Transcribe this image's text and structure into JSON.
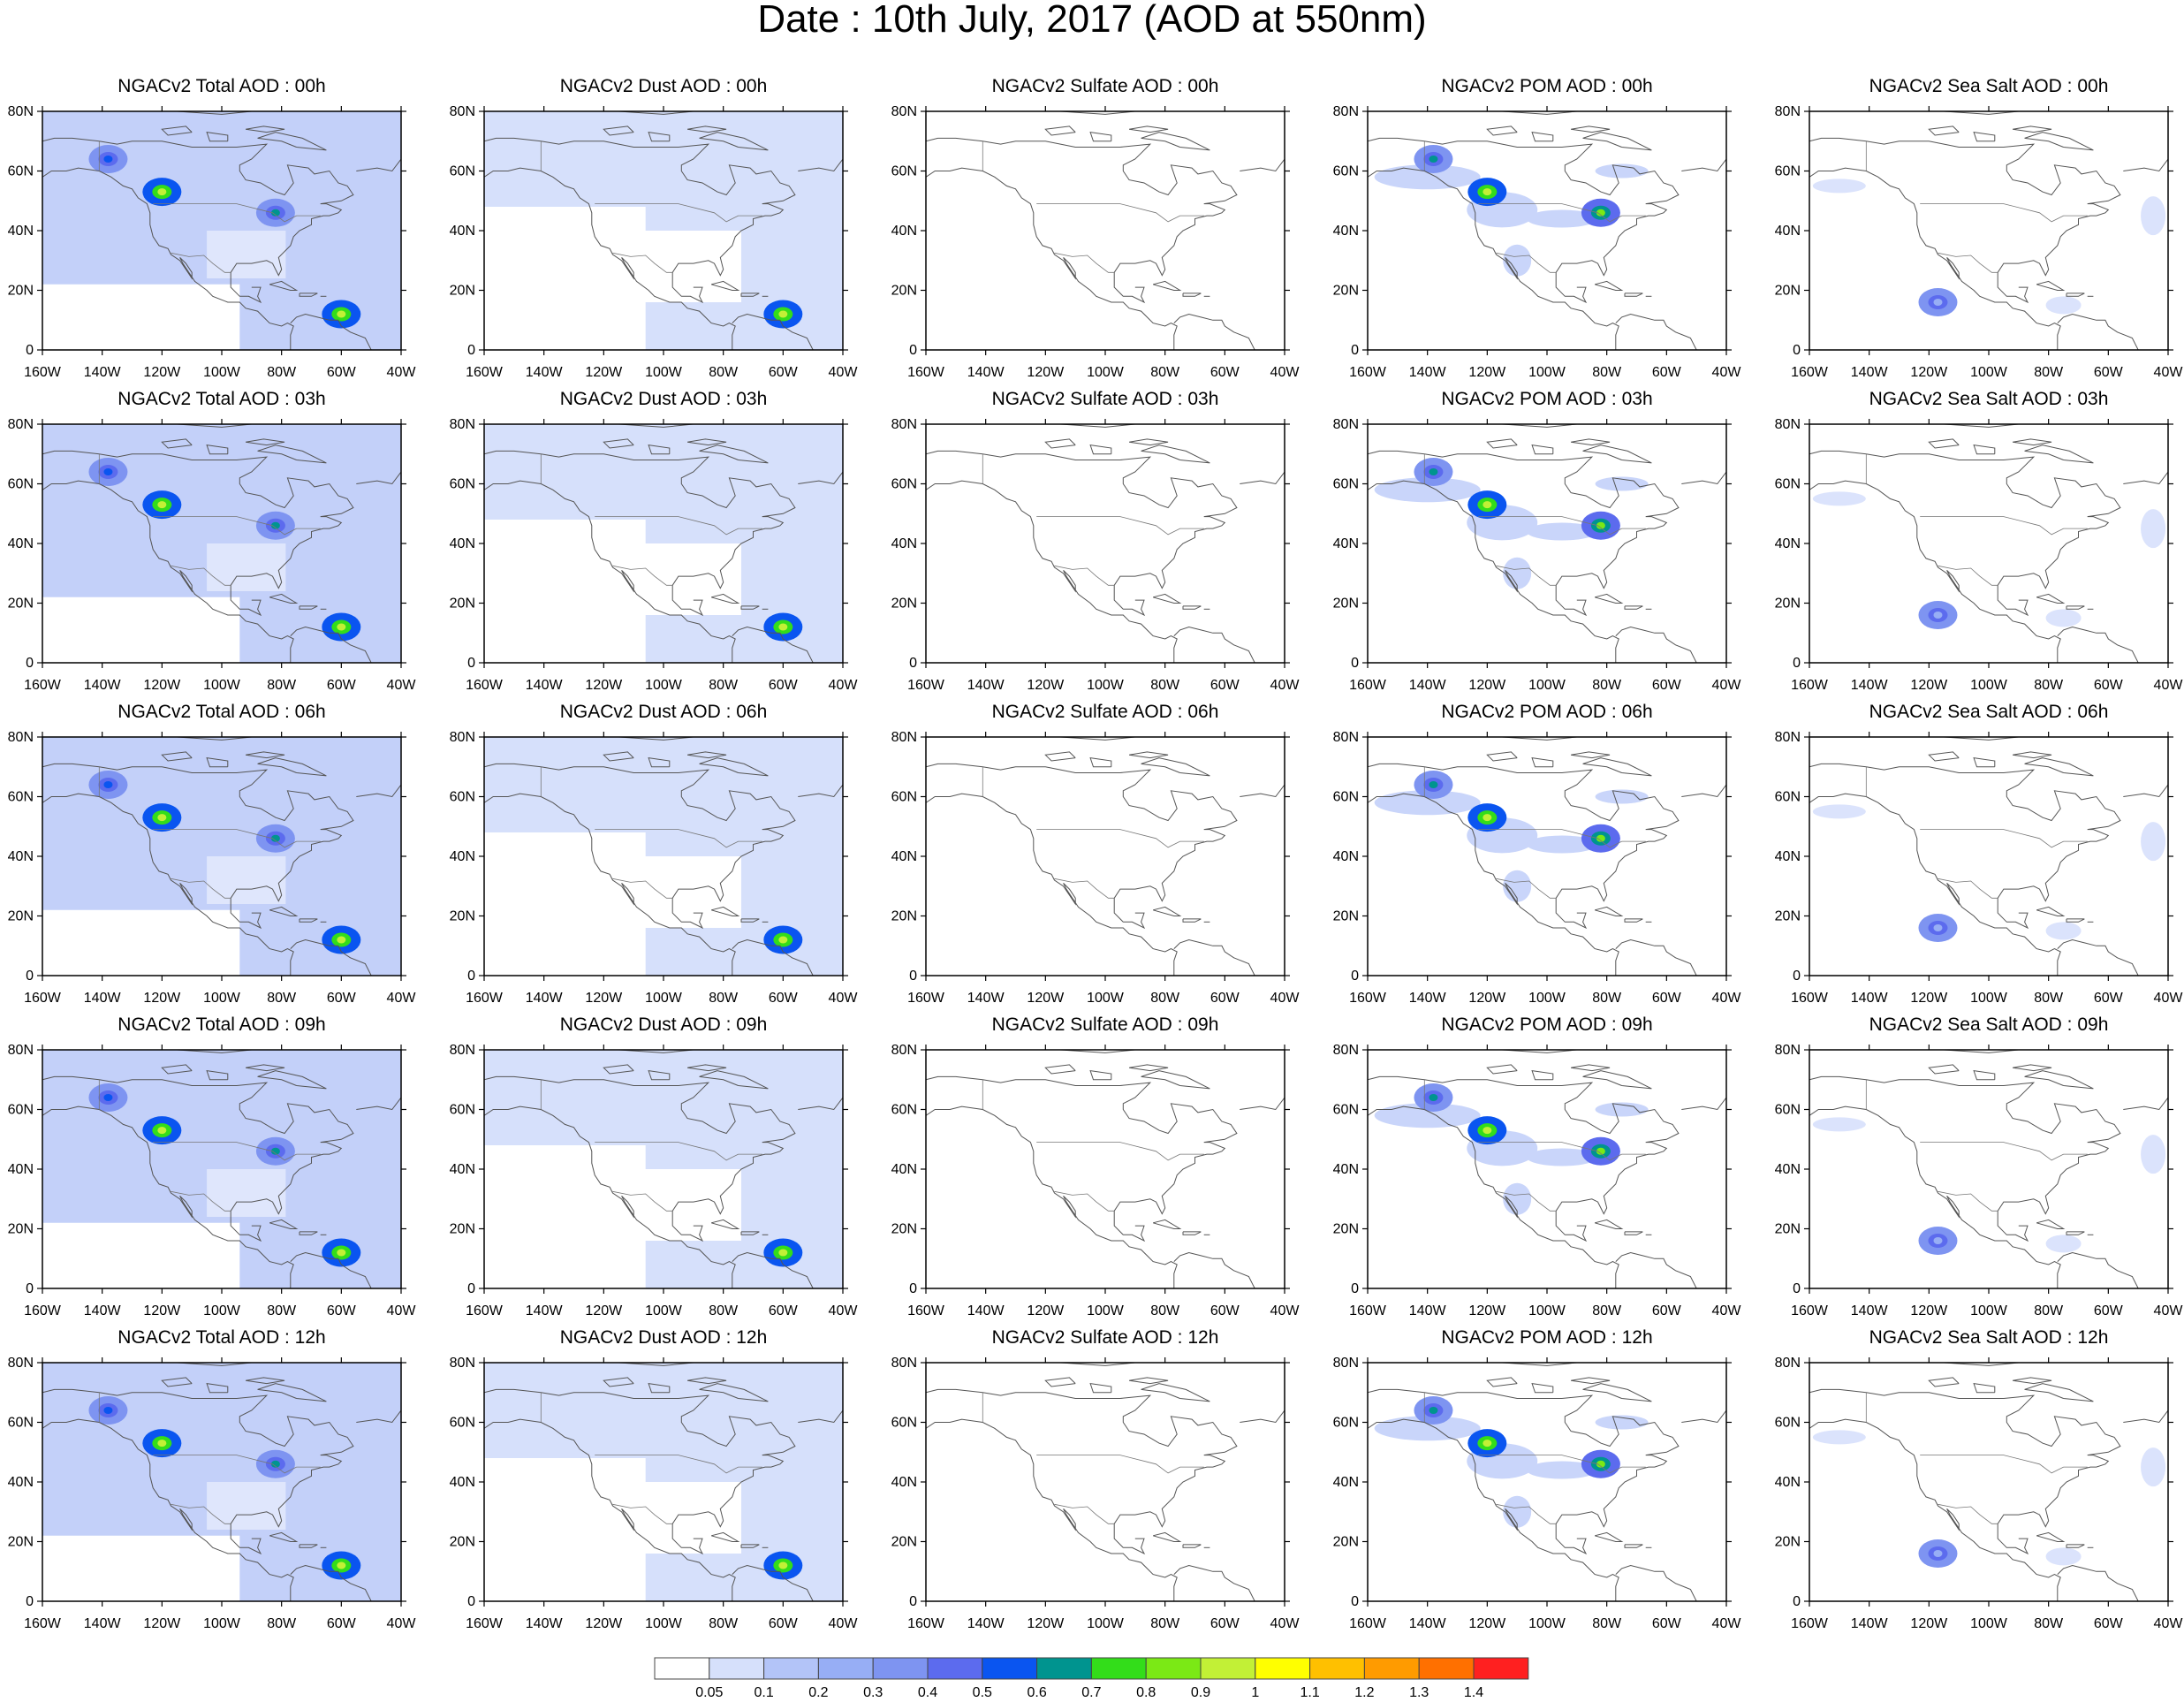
{
  "title": "Date : 10th July, 2017 (AOD at 550nm)",
  "y_tick_labels": [
    "80N",
    "60N",
    "40N",
    "20N",
    "0"
  ],
  "x_tick_labels": [
    "160W",
    "140W",
    "120W",
    "100W",
    "80W",
    "60W",
    "40W"
  ],
  "rows": [
    "00h",
    "03h",
    "06h",
    "09h",
    "12h"
  ],
  "columns": [
    {
      "species": "total",
      "titles": [
        "NGACv2 Total AOD : 00h",
        "NGACv2 Total AOD : 03h",
        "NGACv2 Total AOD : 06h",
        "NGACv2 Total AOD : 09h",
        "NGACv2 Total AOD  : 12h"
      ]
    },
    {
      "species": "dust",
      "titles": [
        "NGACv2 Dust AOD : 00h",
        "NGACv2 Dust AOD : 03h",
        "NGACv2 Dust AOD : 06h",
        "NGACv2 Dust AOD : 09h",
        "NGACv2 Dust AOD : 12h"
      ]
    },
    {
      "species": "sulfate",
      "titles": [
        "NGACv2 Sulfate AOD : 00h",
        "NGACv2 Sulfate AOD : 03h",
        "NGACv2 Sulfate AOD : 06h",
        "NGACv2 Sulfate AOD : 09h",
        "NGACv2 Sulfate AOD : 12h"
      ]
    },
    {
      "species": "pom",
      "titles": [
        "NGACv2 POM AOD : 00h",
        "NGACv2 POM AOD : 03h",
        "NGACv2 POM AOD : 06h",
        "NGACv2 POM AOD : 09h",
        "NGACv2 POM  AOD : 12h"
      ]
    },
    {
      "species": "seasalt",
      "titles": [
        "NGACv2 Sea Salt AOD : 00h",
        "NGACv2 Sea Salt AOD : 03h",
        "NGACv2 Sea Salt AOD : 06h",
        "NGACv2 Sea Salt  AOD : 09h",
        "NGACv2 Sea Salt  AOD : 12h"
      ]
    }
  ],
  "colorbar": {
    "labels": [
      "0.05",
      "0.1",
      "0.2",
      "0.3",
      "0.4",
      "0.5",
      "0.6",
      "0.7",
      "0.8",
      "0.9",
      "1",
      "1.1",
      "1.2",
      "1.3",
      "1.4"
    ],
    "colors": [
      "#ffffff",
      "#d6e0fb",
      "#b3c4f8",
      "#97aef5",
      "#7e94f1",
      "#5c6bee",
      "#0a55f0",
      "#00948f",
      "#33dd1a",
      "#7be915",
      "#c2f036",
      "#ffff00",
      "#ffc000",
      "#ff9b00",
      "#ff7000",
      "#ff2020"
    ]
  },
  "map": {
    "projection": "cylindrical equidistant",
    "lon_range": [
      -160,
      -40
    ],
    "lat_range": [
      0,
      80
    ],
    "land_outline_color": "#555555"
  },
  "aerosol_hotspots": {
    "total": [
      {
        "lon": -120,
        "lat": 53,
        "level": 0.9
      },
      {
        "lon": -82,
        "lat": 46,
        "level": 0.6
      },
      {
        "lon": -60,
        "lat": 12,
        "level": 0.9
      },
      {
        "lon": -138,
        "lat": 64,
        "level": 0.5
      }
    ],
    "dust": [
      {
        "lon": -60,
        "lat": 12,
        "level": 0.9
      }
    ],
    "pom": [
      {
        "lon": -120,
        "lat": 53,
        "level": 0.9
      },
      {
        "lon": -82,
        "lat": 46,
        "level": 0.8
      },
      {
        "lon": -138,
        "lat": 64,
        "level": 0.6
      }
    ],
    "sulfate": [],
    "seasalt": [
      {
        "lon": -117,
        "lat": 16,
        "level": 0.2
      }
    ]
  }
}
